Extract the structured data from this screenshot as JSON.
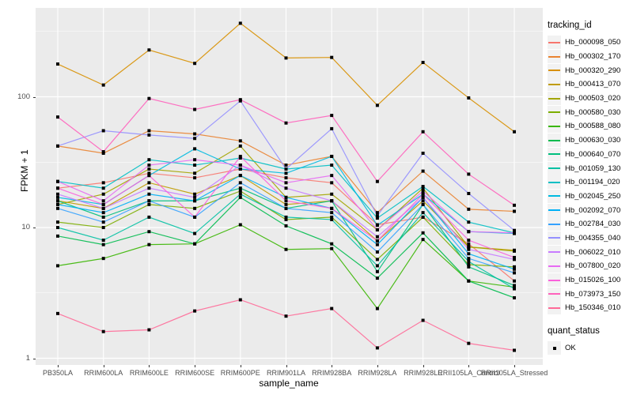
{
  "chart_data": {
    "type": "line",
    "title": "",
    "xlabel": "sample_name",
    "ylabel": "FPKM + 1",
    "yscale": "log",
    "ylim": [
      1,
      400
    ],
    "y_ticks": [
      100,
      10,
      1
    ],
    "grid": true,
    "legend_position": "right",
    "legend_title": "tracking_id",
    "legend2_title": "quant_status",
    "legend2_items": [
      "OK"
    ],
    "point_style": "small black square",
    "panel_color": "#EBEBEB",
    "grid_color": "#FFFFFF",
    "categories": [
      "PB350LA",
      "RRIM600LA",
      "RRIM600LE",
      "RRIM600SE",
      "RRIM600PE",
      "RRIM901LA",
      "RRIM928BA",
      "RRIM928LA",
      "RRIM928LE",
      "RRII105LA_Control",
      "RRII105LA_Stressed"
    ],
    "series": [
      {
        "name": "Hb_000098_050",
        "color": "#F8766D",
        "values": [
          20,
          22,
          26,
          24,
          28,
          24,
          22,
          10.5,
          12,
          7.5,
          3.9
        ]
      },
      {
        "name": "Hb_000302_170",
        "color": "#EA8331",
        "values": [
          42,
          37,
          55,
          52,
          46,
          30,
          35,
          13,
          27,
          13.8,
          13.3
        ]
      },
      {
        "name": "Hb_000320_290",
        "color": "#D89000",
        "values": [
          178,
          123,
          228,
          180,
          365,
          198,
          200,
          86,
          183,
          98,
          54
        ]
      },
      {
        "name": "Hb_000413_070",
        "color": "#C09B00",
        "values": [
          16,
          14,
          22,
          18,
          25,
          15,
          16,
          7.9,
          16,
          7.1,
          6.7
        ]
      },
      {
        "name": "Hb_000503_020",
        "color": "#A3A500",
        "values": [
          15,
          18,
          28,
          26,
          42,
          17,
          18,
          9.6,
          20,
          7.1,
          6.6
        ]
      },
      {
        "name": "Hb_000580_030",
        "color": "#7CAE00",
        "values": [
          11,
          10,
          15,
          14,
          19,
          11.5,
          12,
          5.7,
          12,
          5.2,
          5.0
        ]
      },
      {
        "name": "Hb_000588_080",
        "color": "#39B600",
        "values": [
          5.1,
          5.8,
          7.4,
          7.5,
          10.5,
          6.8,
          6.9,
          2.4,
          8.1,
          3.9,
          3.5
        ]
      },
      {
        "name": "Hb_000630_030",
        "color": "#00BB4E",
        "values": [
          8.6,
          7.4,
          9.3,
          7.5,
          17,
          10.3,
          7.5,
          4.1,
          9.1,
          3.9,
          2.9
        ]
      },
      {
        "name": "Hb_000640_070",
        "color": "#00BF7D",
        "values": [
          16,
          12,
          16,
          16,
          20,
          14,
          16,
          4.6,
          15,
          5.0,
          3.6
        ]
      },
      {
        "name": "Hb_001059_130",
        "color": "#00C1A3",
        "values": [
          10,
          8,
          12,
          9,
          18,
          12,
          11.5,
          5.1,
          13,
          5.5,
          3.4
        ]
      },
      {
        "name": "Hb_001194_020",
        "color": "#00BFC4",
        "values": [
          22.5,
          20,
          33,
          30,
          34,
          28,
          30,
          11.8,
          20.6,
          11,
          9.1
        ]
      },
      {
        "name": "Hb_002045_250",
        "color": "#00BAE0",
        "values": [
          17,
          15,
          25,
          40,
          28,
          26,
          35,
          10.4,
          18,
          9.3,
          9.0
        ]
      },
      {
        "name": "Hb_002092_070",
        "color": "#00B0F6",
        "values": [
          15,
          13,
          18,
          16,
          25,
          17,
          14,
          7.4,
          17,
          6.3,
          4.8
        ]
      },
      {
        "name": "Hb_002784_030",
        "color": "#35A2FF",
        "values": [
          14,
          11,
          16,
          12,
          22,
          14,
          13,
          6.5,
          15,
          5.8,
          4.5
        ]
      },
      {
        "name": "Hb_004355_040",
        "color": "#9590FF",
        "values": [
          42,
          55,
          51,
          48,
          93,
          28,
          57,
          12.3,
          37,
          18.2,
          9.5
        ]
      },
      {
        "name": "Hb_006022_010",
        "color": "#C77CFF",
        "values": [
          18,
          14,
          20,
          17,
          30,
          20,
          16,
          8.5,
          17,
          6.8,
          5.7
        ]
      },
      {
        "name": "Hb_007800_020",
        "color": "#E76BF3",
        "values": [
          22.5,
          16,
          30,
          33,
          30,
          22,
          25,
          9.6,
          19,
          9.3,
          9.1
        ]
      },
      {
        "name": "Hb_015026_100",
        "color": "#FA62DB",
        "values": [
          20,
          15,
          25,
          12,
          35,
          16,
          14,
          7.9,
          18,
          8.0,
          5.9
        ]
      },
      {
        "name": "Hb_073973_150",
        "color": "#FF62BC",
        "values": [
          70,
          38,
          97,
          80,
          95,
          63,
          72,
          22.5,
          54,
          25.6,
          14.8
        ]
      },
      {
        "name": "Hb_150346_010",
        "color": "#FF6A98",
        "values": [
          2.2,
          1.6,
          1.65,
          2.3,
          2.8,
          2.1,
          2.4,
          1.2,
          1.95,
          1.3,
          1.15
        ]
      }
    ]
  }
}
